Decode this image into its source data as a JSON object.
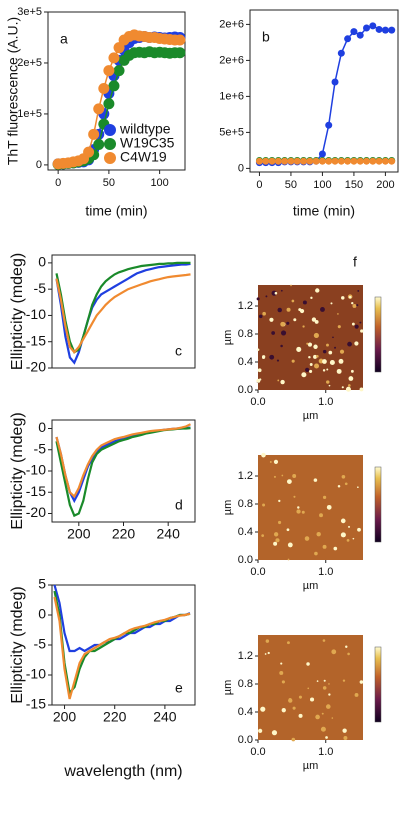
{
  "chart_data": [
    {
      "type": "line",
      "markers": true,
      "label": "a",
      "ylabel": "ThT fluorescence (A.U.)",
      "xlabel": "time (min)",
      "xlim": [
        -10,
        125
      ],
      "xticks": [
        0,
        50,
        100
      ],
      "ylim": [
        -10000,
        300000
      ],
      "yticks": [
        0,
        {
          "value": 100000,
          "label": "1e+5"
        },
        {
          "value": 200000,
          "label": "2e+5"
        },
        {
          "value": 300000,
          "label": "3e+5"
        }
      ],
      "legend": "lower right",
      "x": [
        0,
        5,
        10,
        15,
        20,
        25,
        30,
        35,
        40,
        45,
        50,
        55,
        60,
        65,
        70,
        75,
        80,
        85,
        90,
        95,
        100,
        105,
        110,
        115,
        120
      ],
      "series": [
        {
          "name": "wildtype",
          "color": "#1f3fe0",
          "values": [
            2000,
            2000,
            3000,
            4000,
            5000,
            6000,
            10000,
            30000,
            60000,
            100000,
            140000,
            175000,
            205000,
            225000,
            240000,
            248000,
            250000,
            252000,
            250000,
            251000,
            250000,
            249000,
            250000,
            251000,
            250000
          ]
        },
        {
          "name": "W19C35",
          "color": "#1a8a2a",
          "values": [
            1000,
            2000,
            3000,
            4000,
            6000,
            8000,
            12000,
            20000,
            40000,
            80000,
            120000,
            155000,
            185000,
            205000,
            215000,
            220000,
            221000,
            220000,
            222000,
            220000,
            221000,
            220000,
            219000,
            220000,
            220000
          ]
        },
        {
          "name": "C4W19",
          "color": "#f08a30",
          "values": [
            2000,
            3000,
            4000,
            6000,
            8000,
            12000,
            25000,
            60000,
            110000,
            150000,
            185000,
            210000,
            230000,
            245000,
            252000,
            255000,
            253000,
            252000,
            250000,
            250000,
            248000,
            247000,
            246000,
            245000,
            245000
          ]
        }
      ]
    },
    {
      "type": "line",
      "markers": true,
      "label": "b",
      "xlabel": "time (min)",
      "xlim": [
        -15,
        220
      ],
      "xticks": [
        0,
        50,
        100,
        150,
        200
      ],
      "ylim": [
        -50000,
        2200000
      ],
      "yticks": [
        0,
        {
          "value": 500000,
          "label": "5e+5"
        },
        {
          "value": 1000000,
          "label": "1e+6"
        },
        {
          "value": 1500000,
          "label": "2e+6"
        },
        {
          "value": 2000000,
          "label": "2e+6"
        }
      ],
      "x": [
        0,
        10,
        20,
        30,
        40,
        50,
        60,
        70,
        80,
        90,
        100,
        110,
        120,
        130,
        140,
        150,
        160,
        170,
        180,
        190,
        200,
        210
      ],
      "series": [
        {
          "color": "#1f3fe0",
          "values": [
            80000,
            80000,
            80000,
            80000,
            90000,
            90000,
            90000,
            90000,
            90000,
            100000,
            200000,
            600000,
            1200000,
            1600000,
            1800000,
            1900000,
            1850000,
            1950000,
            1980000,
            1930000,
            1920000,
            1920000
          ]
        },
        {
          "color": "#1a8a2a",
          "values": [
            110000,
            110000,
            110000,
            110000,
            110000,
            110000,
            110000,
            110000,
            110000,
            110000,
            110000,
            110000,
            110000,
            110000,
            110000,
            110000,
            110000,
            110000,
            110000,
            110000,
            110000,
            110000
          ]
        },
        {
          "color": "#f08a30",
          "values": [
            100000,
            100000,
            100000,
            100000,
            100000,
            100000,
            100000,
            100000,
            100000,
            100000,
            100000,
            100000,
            100000,
            100000,
            100000,
            100000,
            100000,
            100000,
            100000,
            100000,
            100000,
            100000
          ]
        }
      ]
    },
    {
      "type": "line",
      "label": "c",
      "ylabel": "Ellipticity (mdeg)",
      "xlim": [
        188,
        252
      ],
      "ylim": [
        -20,
        1.5
      ],
      "yticks": [
        -20,
        -15,
        -10,
        -5,
        0
      ],
      "x": [
        190,
        192,
        194,
        196,
        198,
        200,
        202,
        204,
        206,
        208,
        210,
        212,
        214,
        216,
        218,
        220,
        222,
        224,
        226,
        228,
        230,
        232,
        234,
        236,
        238,
        240,
        242,
        244,
        246,
        248,
        250
      ],
      "series": [
        {
          "color": "#1f3fe0",
          "values": [
            -3,
            -8,
            -14,
            -18,
            -19,
            -17,
            -14,
            -11,
            -8.5,
            -7,
            -6,
            -5.5,
            -5,
            -4.5,
            -4,
            -3.5,
            -3,
            -2.5,
            -2,
            -1.7,
            -1.4,
            -1.2,
            -1,
            -0.8,
            -0.7,
            -0.6,
            -0.5,
            -0.4,
            -0.3,
            -0.3,
            -0.2
          ]
        },
        {
          "color": "#1a8a2a",
          "values": [
            -2,
            -6,
            -11,
            -15,
            -17,
            -16.5,
            -14,
            -11,
            -8,
            -6,
            -4.5,
            -3.5,
            -2.8,
            -2.2,
            -1.8,
            -1.5,
            -1.2,
            -1,
            -0.8,
            -0.6,
            -0.5,
            -0.4,
            -0.3,
            -0.2,
            -0.2,
            -0.1,
            -0.1,
            0,
            0,
            0,
            0
          ]
        },
        {
          "color": "#f08a30",
          "values": [
            -3,
            -7,
            -12,
            -16,
            -17,
            -16,
            -14.5,
            -13,
            -11.5,
            -10,
            -9,
            -8,
            -7.2,
            -6.5,
            -6,
            -5.5,
            -5,
            -4.7,
            -4.4,
            -4.1,
            -3.8,
            -3.5,
            -3.3,
            -3.1,
            -2.9,
            -2.7,
            -2.6,
            -2.5,
            -2.4,
            -2.3,
            -2.2
          ]
        }
      ]
    },
    {
      "type": "line",
      "label": "d",
      "ylabel": "Ellipticity (mdeg)",
      "xlim": [
        188,
        252
      ],
      "xticks": [
        200,
        220,
        240
      ],
      "ylim": [
        -22,
        2
      ],
      "yticks": [
        -20,
        -15,
        -10,
        -5,
        0
      ],
      "x": [
        190,
        192,
        194,
        196,
        198,
        200,
        202,
        204,
        206,
        208,
        210,
        212,
        214,
        216,
        218,
        220,
        222,
        224,
        226,
        228,
        230,
        232,
        234,
        236,
        238,
        240,
        242,
        244,
        246,
        248,
        250
      ],
      "series": [
        {
          "color": "#1f3fe0",
          "values": [
            -2,
            -6,
            -11,
            -15,
            -17,
            -15,
            -12,
            -9,
            -7,
            -5.5,
            -4.5,
            -4,
            -3.5,
            -3,
            -2.7,
            -2.4,
            -2,
            -1.7,
            -1.5,
            -1.2,
            -1,
            -0.8,
            -0.6,
            -0.5,
            -0.3,
            -0.2,
            -0.1,
            0,
            0,
            0.1,
            0.2
          ]
        },
        {
          "color": "#1a8a2a",
          "values": [
            -3,
            -8,
            -13,
            -18,
            -20.5,
            -20,
            -17,
            -12,
            -8,
            -6,
            -5,
            -4.5,
            -4,
            -3.5,
            -3,
            -2.7,
            -2.4,
            -2,
            -1.8,
            -1.5,
            -1.2,
            -1,
            -0.8,
            -0.6,
            -0.4,
            -0.3,
            -0.2,
            -0.1,
            0,
            0,
            0.1
          ]
        },
        {
          "color": "#f08a30",
          "values": [
            -2,
            -6,
            -11,
            -15,
            -16,
            -14,
            -11,
            -8.5,
            -6.5,
            -5,
            -4,
            -3.5,
            -3,
            -2.5,
            -2.2,
            -2,
            -1.7,
            -1.4,
            -1.2,
            -1,
            -0.8,
            -0.6,
            -0.5,
            -0.4,
            -0.3,
            -0.2,
            -0.1,
            0,
            0.2,
            0.5,
            1
          ]
        }
      ]
    },
    {
      "type": "line",
      "label": "e",
      "ylabel": "Ellipticity (mdeg)",
      "xlabel": "wavelength (nm)",
      "xlim": [
        195,
        252
      ],
      "xticks": [
        200,
        220,
        240
      ],
      "ylim": [
        -15,
        5
      ],
      "yticks": [
        -15,
        -10,
        -5,
        0,
        5
      ],
      "x": [
        196,
        198,
        200,
        202,
        204,
        206,
        208,
        210,
        212,
        214,
        216,
        218,
        220,
        222,
        224,
        226,
        228,
        230,
        232,
        234,
        236,
        238,
        240,
        242,
        244,
        246,
        248,
        250
      ],
      "series": [
        {
          "color": "#1f3fe0",
          "values": [
            5,
            2,
            -3,
            -6,
            -6,
            -5.5,
            -6,
            -5.5,
            -5,
            -5,
            -4.5,
            -4.5,
            -4,
            -4,
            -3.5,
            -3,
            -3,
            -2.5,
            -2,
            -2,
            -1.5,
            -1.5,
            -1,
            -1,
            -0.5,
            0,
            0,
            0.3
          ]
        },
        {
          "color": "#1a8a2a",
          "values": [
            4,
            0,
            -8,
            -13,
            -12,
            -9,
            -7,
            -6,
            -6,
            -5.5,
            -5,
            -4.5,
            -4,
            -3.5,
            -3,
            -3,
            -2.5,
            -2,
            -2,
            -1.5,
            -1.5,
            -1,
            -1,
            -0.5,
            -0.3,
            0,
            0,
            0.2
          ]
        },
        {
          "color": "#f08a30",
          "values": [
            3,
            -1,
            -9,
            -14,
            -11,
            -8,
            -6.5,
            -6,
            -5.5,
            -5,
            -4.5,
            -4,
            -3.8,
            -3.5,
            -3,
            -2.5,
            -2.2,
            -2,
            -1.8,
            -1.5,
            -1.2,
            -1,
            -0.8,
            -0.5,
            -0.3,
            -0.1,
            0,
            0.2
          ]
        }
      ]
    }
  ],
  "afm_images": [
    {
      "label": "f",
      "xlabel": "µm",
      "ylabel": "µm",
      "xlim": [
        0,
        1.55
      ],
      "ylim": [
        0,
        1.5
      ],
      "xticks": [
        {
          "value": 0,
          "label": "0.0"
        },
        {
          "value": 1,
          "label": "1.0"
        }
      ],
      "yticks": [
        {
          "value": 0,
          "label": "0.0"
        },
        {
          "value": 0.4,
          "label": "0.4"
        },
        {
          "value": 0.8,
          "label": "0.8"
        },
        {
          "value": 1.2,
          "label": "1.2"
        }
      ]
    },
    {
      "xlabel": "µm",
      "ylabel": "µm",
      "xlim": [
        0,
        1.55
      ],
      "ylim": [
        0,
        1.5
      ],
      "xticks": [
        {
          "value": 0,
          "label": "0.0"
        },
        {
          "value": 1,
          "label": "1.0"
        }
      ],
      "yticks": [
        {
          "value": 0,
          "label": "0.0"
        },
        {
          "value": 0.4,
          "label": "0.4"
        },
        {
          "value": 0.8,
          "label": "0.8"
        },
        {
          "value": 1.2,
          "label": "1.2"
        }
      ]
    },
    {
      "xlabel": "µm",
      "ylabel": "µm",
      "xlim": [
        0,
        1.55
      ],
      "ylim": [
        0,
        1.5
      ],
      "xticks": [
        {
          "value": 0,
          "label": "0.0"
        },
        {
          "value": 1,
          "label": "1.0"
        }
      ],
      "yticks": [
        {
          "value": 0,
          "label": "0.0"
        },
        {
          "value": 0.4,
          "label": "0.4"
        },
        {
          "value": 0.8,
          "label": "0.8"
        },
        {
          "value": 1.2,
          "label": "1.2"
        }
      ]
    }
  ]
}
